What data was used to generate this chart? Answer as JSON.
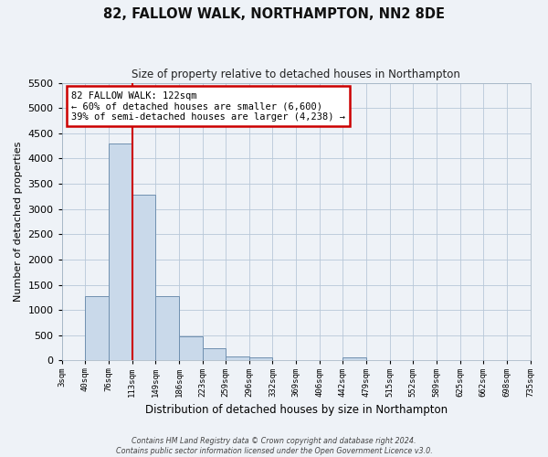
{
  "title": "82, FALLOW WALK, NORTHAMPTON, NN2 8DE",
  "subtitle": "Size of property relative to detached houses in Northampton",
  "xlabel": "Distribution of detached houses by size in Northampton",
  "ylabel": "Number of detached properties",
  "bin_labels": [
    "3sqm",
    "40sqm",
    "76sqm",
    "113sqm",
    "149sqm",
    "186sqm",
    "223sqm",
    "259sqm",
    "296sqm",
    "332sqm",
    "369sqm",
    "406sqm",
    "442sqm",
    "479sqm",
    "515sqm",
    "552sqm",
    "589sqm",
    "625sqm",
    "662sqm",
    "698sqm",
    "735sqm"
  ],
  "bar_values": [
    0,
    1270,
    4300,
    3280,
    1280,
    480,
    235,
    85,
    60,
    0,
    0,
    0,
    55,
    0,
    0,
    0,
    0,
    0,
    0,
    0,
    0
  ],
  "bar_color": "#c9d9ea",
  "bar_edge_color": "#7090b0",
  "vline_x_index": 3,
  "vline_color": "#cc0000",
  "annotation_title": "82 FALLOW WALK: 122sqm",
  "annotation_line1": "← 60% of detached houses are smaller (6,600)",
  "annotation_line2": "39% of semi-detached houses are larger (4,238) →",
  "annotation_box_color": "#cc0000",
  "ylim": [
    0,
    5500
  ],
  "yticks": [
    0,
    500,
    1000,
    1500,
    2000,
    2500,
    3000,
    3500,
    4000,
    4500,
    5000,
    5500
  ],
  "footer_line1": "Contains HM Land Registry data © Crown copyright and database right 2024.",
  "footer_line2": "Contains public sector information licensed under the Open Government Licence v3.0.",
  "bg_color": "#eef2f7",
  "grid_color": "#b8c8d8"
}
